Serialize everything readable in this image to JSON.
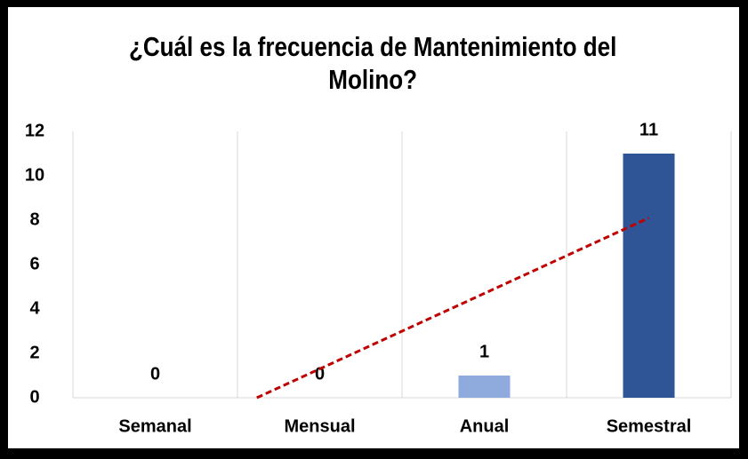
{
  "chart_data": {
    "type": "bar",
    "title": "¿Cuál es la frecuencia de Mantenimiento del Molino?",
    "categories": [
      "Semanal",
      "Mensual",
      "Anual",
      "Semestral"
    ],
    "values": [
      0,
      0,
      1,
      11
    ],
    "colors": [
      "#8faadc",
      "#8faadc",
      "#8faadc",
      "#2f5597"
    ],
    "ylim": [
      0,
      12
    ],
    "yticks": [
      0,
      2,
      4,
      6,
      8,
      10,
      12
    ],
    "grid": "vertical",
    "trendline": {
      "type": "linear",
      "color": "#c00000"
    }
  }
}
